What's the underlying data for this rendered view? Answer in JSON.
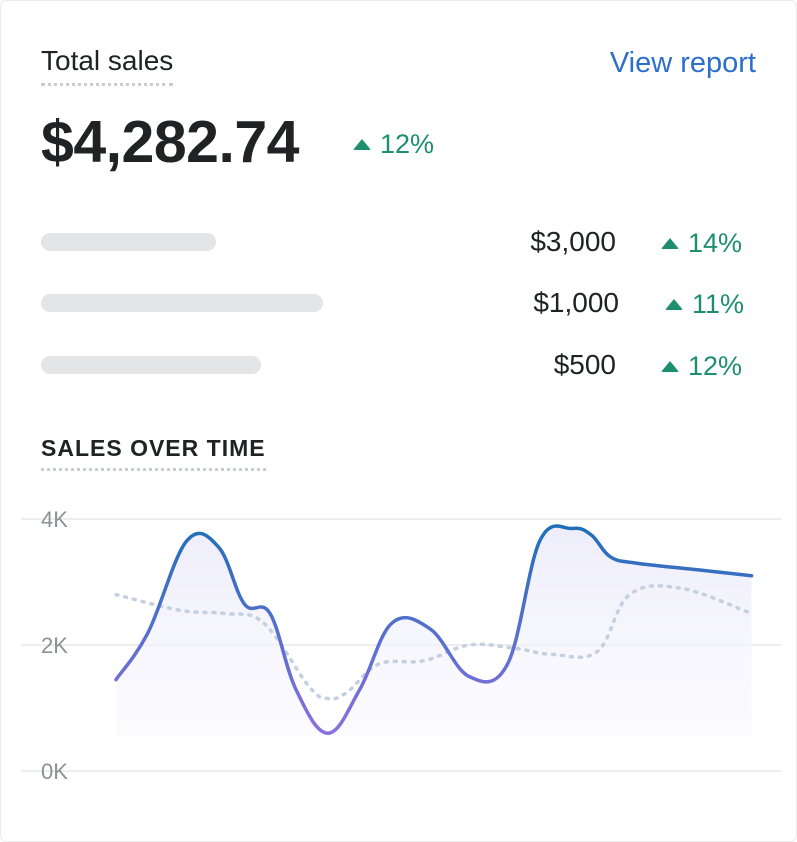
{
  "header": {
    "title": "Total sales",
    "view_report": "View report"
  },
  "summary": {
    "total": "$4,282.74",
    "change": "12%"
  },
  "breakdown": [
    {
      "amount": "$3,000",
      "change": "14%",
      "bar_fraction": 0.55
    },
    {
      "amount": "$1,000",
      "change": "11%",
      "bar_fraction": 0.88
    },
    {
      "amount": "$500",
      "change": "12%",
      "bar_fraction": 0.69
    }
  ],
  "colors": {
    "accent_link": "#2c6ecb",
    "positive": "#1e8f6e",
    "line_start": "#8b6fe0",
    "line_end": "#1f6fb8",
    "comparison_line": "#c4cfe0",
    "placeholder_bar": "#e4e5e7"
  },
  "icons": {
    "change": "triangle-up-icon"
  },
  "chart_data": {
    "type": "line",
    "title": "SALES OVER TIME",
    "xlabel": "",
    "ylabel": "",
    "ylim": [
      0,
      4000
    ],
    "y_ticks": [
      "4K",
      "2K",
      "0K"
    ],
    "y_tick_values": [
      4000,
      2000,
      0
    ],
    "grid": true,
    "series": [
      {
        "style": "solid",
        "x": [
          0,
          0.05,
          0.11,
          0.16,
          0.2,
          0.24,
          0.28,
          0.33,
          0.38,
          0.43,
          0.49,
          0.55,
          0.61,
          0.66,
          0.71,
          0.74,
          0.77,
          0.81,
          0.9,
          0.99
        ],
        "values": [
          1450,
          2200,
          3650,
          3550,
          2650,
          2500,
          1300,
          600,
          1300,
          2350,
          2250,
          1500,
          1700,
          3650,
          3850,
          3750,
          3400,
          3300,
          3200,
          3100
        ]
      },
      {
        "style": "dotted",
        "x": [
          0,
          0.1,
          0.17,
          0.23,
          0.3,
          0.33,
          0.36,
          0.41,
          0.48,
          0.55,
          0.62,
          0.68,
          0.75,
          0.8,
          0.88,
          0.99
        ],
        "values": [
          2800,
          2550,
          2500,
          2350,
          1350,
          1150,
          1250,
          1700,
          1750,
          2000,
          1950,
          1850,
          1900,
          2800,
          2900,
          2500
        ]
      }
    ]
  }
}
